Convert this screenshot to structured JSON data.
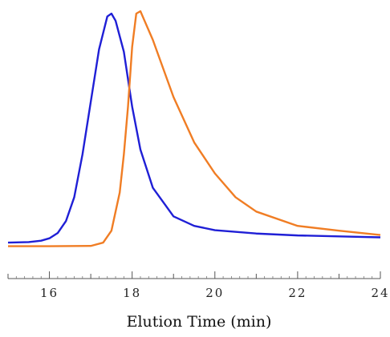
{
  "chart_data": {
    "type": "line",
    "title": "",
    "xlabel": "Elution Time (min)",
    "ylabel": "",
    "xlim": [
      15,
      24
    ],
    "ylim": [
      0,
      1.0
    ],
    "grid": false,
    "legend": "none",
    "x_ticks": [
      16,
      17,
      18,
      19,
      20,
      21,
      22,
      23,
      24
    ],
    "x_tick_labels": [
      "16",
      "",
      "18",
      "",
      "20",
      "",
      "22",
      "",
      "24"
    ],
    "series": [
      {
        "color": "#1f1fd6",
        "x": [
          15.0,
          15.5,
          15.8,
          16.0,
          16.2,
          16.4,
          16.6,
          16.8,
          17.0,
          17.2,
          17.4,
          17.5,
          17.6,
          17.8,
          18.0,
          18.2,
          18.5,
          19.0,
          19.5,
          20.0,
          21.0,
          22.0,
          23.0,
          24.0
        ],
        "y": [
          0.03,
          0.032,
          0.038,
          0.048,
          0.07,
          0.12,
          0.22,
          0.4,
          0.62,
          0.84,
          0.978,
          0.99,
          0.96,
          0.83,
          0.6,
          0.42,
          0.26,
          0.14,
          0.1,
          0.082,
          0.068,
          0.06,
          0.056,
          0.052
        ]
      },
      {
        "color": "#f07d24",
        "x": [
          15.0,
          16.0,
          17.0,
          17.3,
          17.5,
          17.7,
          17.8,
          17.9,
          18.0,
          18.1,
          18.2,
          18.3,
          18.5,
          19.0,
          19.5,
          20.0,
          20.5,
          21.0,
          22.0,
          23.0,
          24.0
        ],
        "y": [
          0.015,
          0.015,
          0.016,
          0.03,
          0.08,
          0.24,
          0.4,
          0.6,
          0.85,
          0.99,
          1.0,
          0.96,
          0.88,
          0.64,
          0.45,
          0.32,
          0.22,
          0.16,
          0.1,
          0.08,
          0.062
        ]
      }
    ]
  }
}
